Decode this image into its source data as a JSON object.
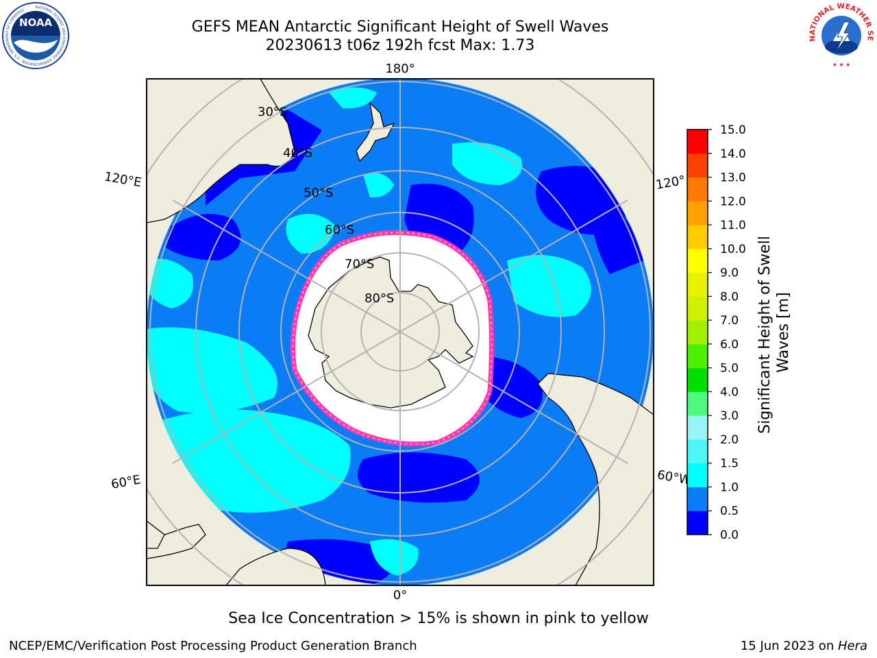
{
  "header": {
    "title_line1": "GEFS MEAN Antarctic Significant Height of Swell Waves",
    "title_line2": "20230613 t06z 192h fcst   Max: 1.73"
  },
  "logos": {
    "left": "NOAA",
    "left_ring": "NATIONAL OCEANIC AND ATMOSPHERIC ADMINISTRATION · U.S. DEPARTMENT OF COMMERCE",
    "right": "NATIONAL WEATHER SERVICE"
  },
  "map": {
    "projection": "south-polar-stereographic",
    "longitude_labels": {
      "top": "180°",
      "bottom": "0°",
      "left_upper": "120°E",
      "left_lower": "60°E",
      "right_upper": "120°",
      "right_lower": "60°W"
    },
    "latitude_labels": [
      "30°S",
      "40°S",
      "50°S",
      "60°S",
      "70°S",
      "80°S"
    ],
    "colors": {
      "land": "#efedde",
      "grid": "#b3b3b3",
      "ice": "#ffffff",
      "ice_edge": "#ff33cc"
    }
  },
  "colorbar": {
    "label": "Significant Height of Swell Waves [m]",
    "ticks": [
      "0.0",
      "0.5",
      "1.0",
      "1.5",
      "2.0",
      "3.0",
      "4.0",
      "5.0",
      "6.0",
      "7.0",
      "8.0",
      "9.0",
      "10.0",
      "11.0",
      "12.0",
      "13.0",
      "14.0",
      "15.0"
    ],
    "colors": [
      "#0000ff",
      "#0a7cf5",
      "#00ffff",
      "#4df5f5",
      "#99f5f5",
      "#4dfa80",
      "#00e000",
      "#4df000",
      "#a0f000",
      "#d0f000",
      "#e8f000",
      "#ffff00",
      "#ffcc00",
      "#ffa000",
      "#ff7800",
      "#ff4000",
      "#ff0000"
    ]
  },
  "note": "Sea Ice Concentration > 15% is shown in pink to yellow",
  "footer": {
    "left": "NCEP/EMC/Verification Post Processing Product Generation Branch",
    "right_date": "15 Jun 2023 on ",
    "right_host": "Hera"
  }
}
